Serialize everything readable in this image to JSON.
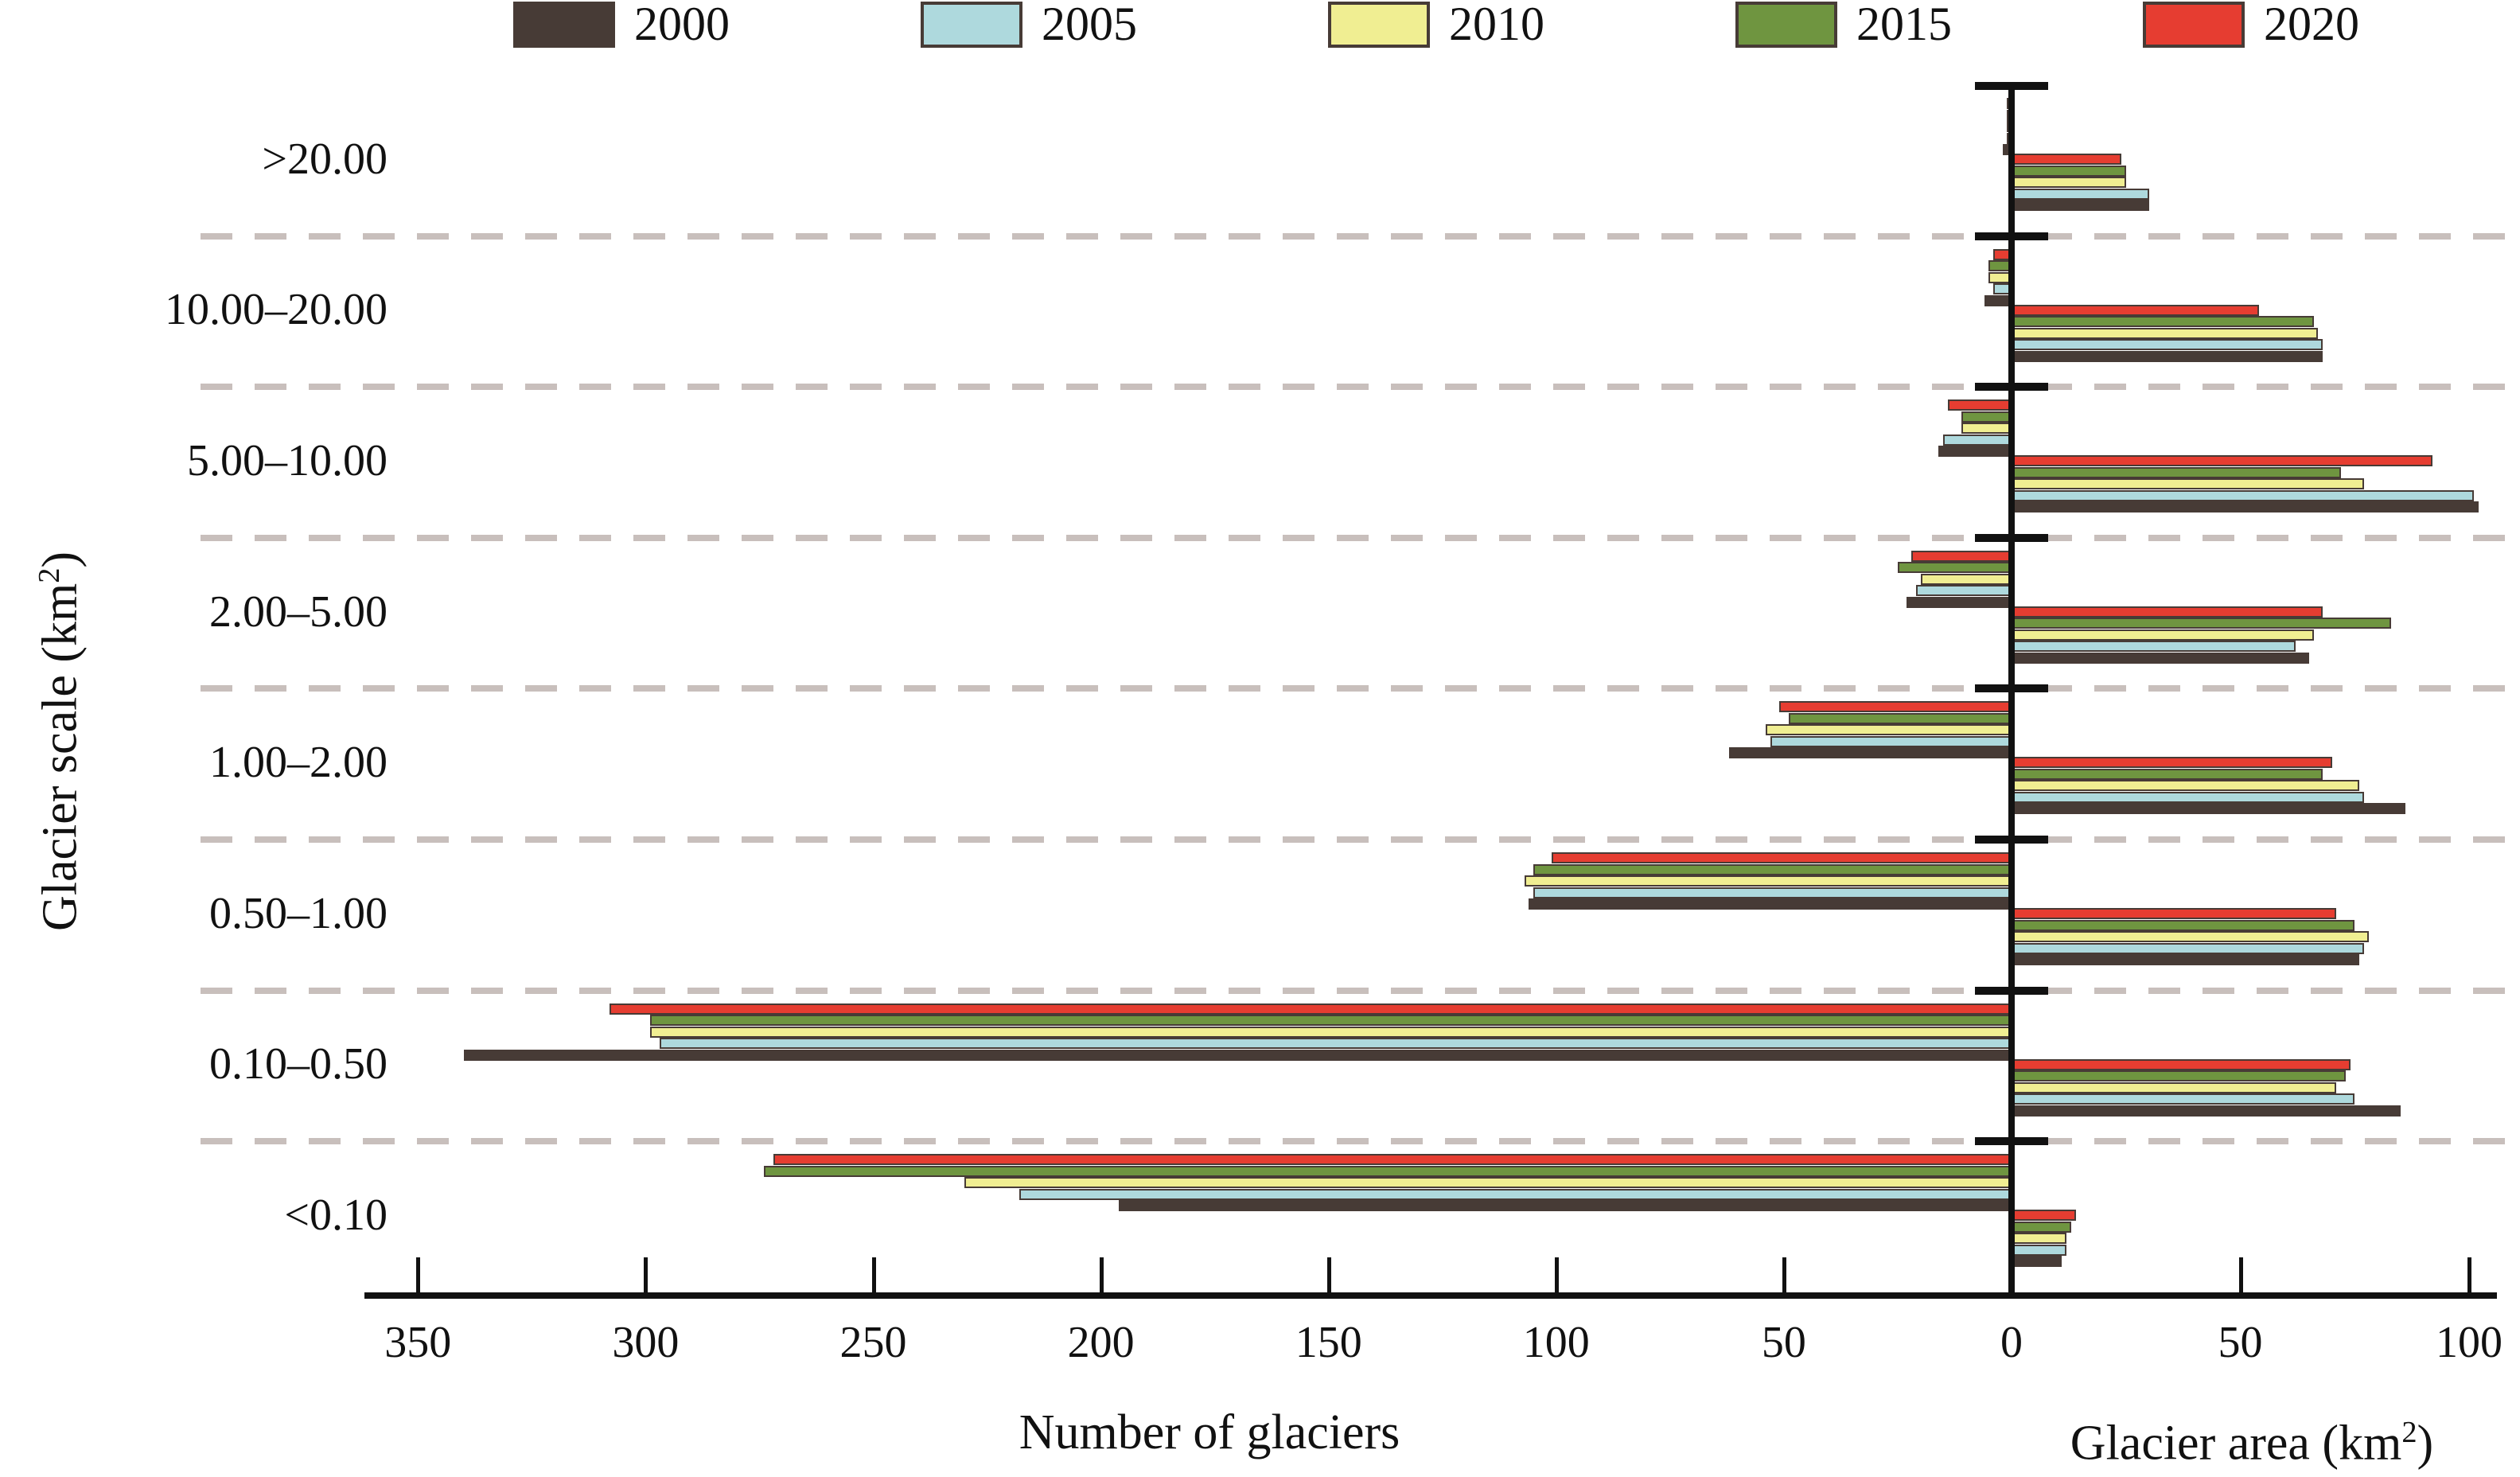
{
  "chart_data": {
    "type": "bar",
    "orientation": "diverging-horizontal",
    "title": "",
    "categories": [
      ">20.00",
      "10.00–20.00",
      "5.00–10.00",
      "2.00–5.00",
      "1.00–2.00",
      "0.50–1.00",
      "0.10–0.50",
      "<0.10"
    ],
    "series": [
      {
        "name": "2000",
        "color": "#473b36",
        "number": [
          2,
          6,
          16,
          23,
          62,
          106,
          340,
          196
        ],
        "area": [
          30,
          68,
          102,
          65,
          86,
          76,
          85,
          11
        ]
      },
      {
        "name": "2005",
        "color": "#aed9dd",
        "number": [
          1,
          4,
          15,
          21,
          53,
          105,
          297,
          218
        ],
        "area": [
          30,
          68,
          101,
          62,
          77,
          77,
          75,
          12
        ]
      },
      {
        "name": "2010",
        "color": "#f0ee92",
        "number": [
          1,
          5,
          11,
          20,
          54,
          107,
          299,
          230
        ],
        "area": [
          25,
          67,
          77,
          66,
          76,
          78,
          71,
          12
        ]
      },
      {
        "name": "2015",
        "color": "#6f9540",
        "number": [
          1,
          5,
          11,
          25,
          49,
          105,
          299,
          274
        ],
        "area": [
          25,
          66,
          72,
          83,
          68,
          75,
          73,
          13
        ]
      },
      {
        "name": "2020",
        "color": "#e63d31",
        "number": [
          1,
          4,
          14,
          22,
          51,
          101,
          308,
          272
        ],
        "area": [
          24,
          54,
          92,
          68,
          70,
          71,
          74,
          14
        ]
      }
    ],
    "left_axis": {
      "label": "Number of glaciers",
      "ticks": [
        350,
        300,
        250,
        200,
        150,
        100,
        50
      ],
      "min": 0,
      "max": 350
    },
    "right_axis": {
      "label_prefix": "Glacier area (km",
      "label_sup": "2",
      "label_suffix": ")",
      "ticks": [
        50,
        100
      ],
      "min": 0,
      "max": 100
    },
    "zero_label": "0",
    "y_axis": {
      "label_prefix": "Glacier scale (km",
      "label_sup": "2",
      "label_suffix": ")"
    },
    "legend_position": "top",
    "grid": "dashed-horizontal-category-separators"
  }
}
